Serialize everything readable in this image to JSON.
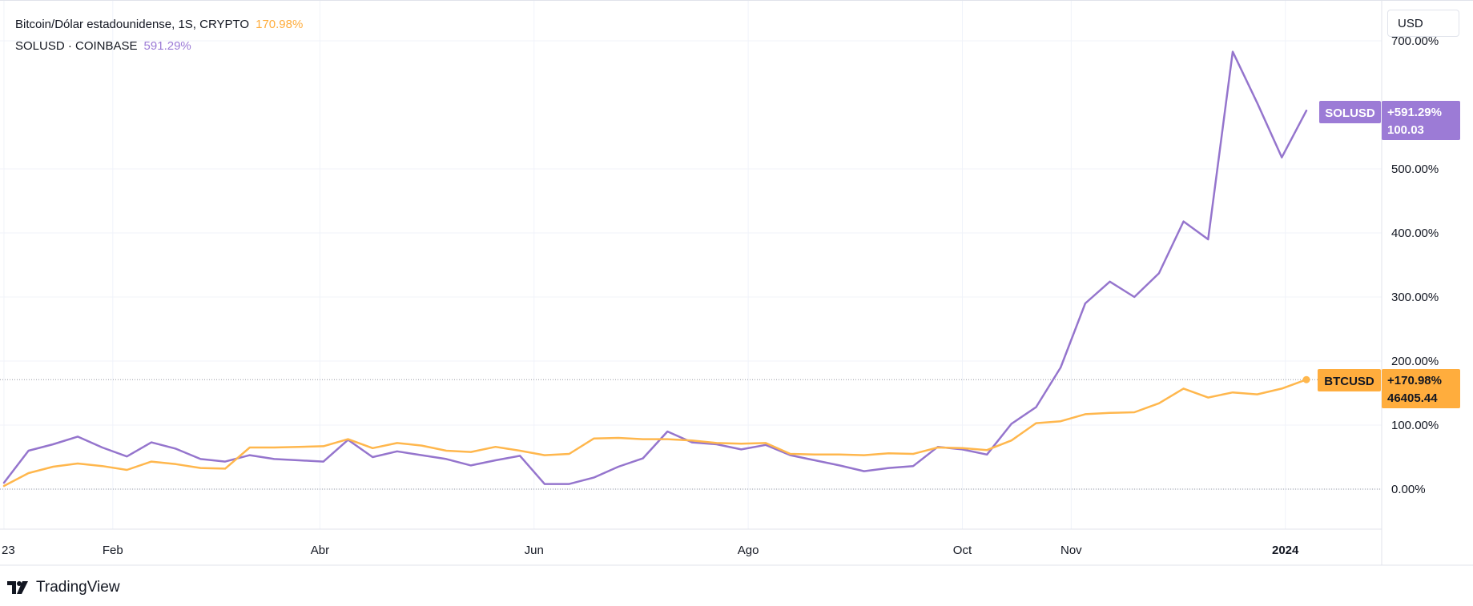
{
  "legend": {
    "series1_label": "Bitcoin/Dólar estadounidense, 1S, CRYPTO",
    "series1_change": "170.98%",
    "series2_label": "SOLUSD · COINBASE",
    "series2_change": "591.29%"
  },
  "currency_button": "USD",
  "logo_text": "TradingView",
  "colors": {
    "btc": "#ffb74d",
    "sol": "#9575cd",
    "btc_label": "#ffad3d",
    "sol_label": "#9c7bd6",
    "grid": "#f0f3fa",
    "axis_text": "#131722"
  },
  "badges": {
    "sol": {
      "name": "SOLUSD",
      "change": "+591.29%",
      "price": "100.03"
    },
    "btc": {
      "name": "BTCUSD",
      "change": "+170.98%",
      "price": "46405.44"
    }
  },
  "chart_data": {
    "type": "line",
    "y_unit": "%",
    "ylim": [
      -70,
      700
    ],
    "y_ticks": [
      0,
      100,
      200,
      300,
      400,
      500,
      700
    ],
    "y_tick_labels": [
      "0.00%",
      "100.00%",
      "200.00%",
      "300.00%",
      "400.00%",
      "500.00%",
      "700.00%"
    ],
    "x_ticks": [
      {
        "label": "23",
        "date": "2023-01-01"
      },
      {
        "label": "Feb",
        "date": "2023-02-01"
      },
      {
        "label": "Abr",
        "date": "2023-04-01"
      },
      {
        "label": "Jun",
        "date": "2023-06-01"
      },
      {
        "label": "Ago",
        "date": "2023-08-01"
      },
      {
        "label": "Oct",
        "date": "2023-10-01"
      },
      {
        "label": "Nov",
        "date": "2023-11-01"
      },
      {
        "label": "2024",
        "date": "2024-01-01"
      }
    ],
    "xlim": [
      "2023-01-01",
      "2024-01-24"
    ],
    "grid": true,
    "legend_position": "top-left",
    "series": [
      {
        "name": "Bitcoin/Dólar estadounidense, 1S, CRYPTO",
        "color": "#ffb74d",
        "x": [
          "2023-01-01",
          "2023-01-08",
          "2023-01-15",
          "2023-01-22",
          "2023-01-29",
          "2023-02-05",
          "2023-02-12",
          "2023-02-19",
          "2023-02-26",
          "2023-03-05",
          "2023-03-12",
          "2023-03-19",
          "2023-03-26",
          "2023-04-02",
          "2023-04-09",
          "2023-04-16",
          "2023-04-23",
          "2023-04-30",
          "2023-05-07",
          "2023-05-14",
          "2023-05-21",
          "2023-05-28",
          "2023-06-04",
          "2023-06-11",
          "2023-06-18",
          "2023-06-25",
          "2023-07-02",
          "2023-07-09",
          "2023-07-16",
          "2023-07-23",
          "2023-07-30",
          "2023-08-06",
          "2023-08-13",
          "2023-08-20",
          "2023-08-27",
          "2023-09-03",
          "2023-09-10",
          "2023-09-17",
          "2023-09-24",
          "2023-10-01",
          "2023-10-08",
          "2023-10-15",
          "2023-10-22",
          "2023-10-29",
          "2023-11-05",
          "2023-11-12",
          "2023-11-19",
          "2023-11-26",
          "2023-12-03",
          "2023-12-10",
          "2023-12-17",
          "2023-12-24",
          "2023-12-31",
          "2024-01-07"
        ],
        "values": [
          5,
          25,
          35,
          40,
          36,
          30,
          43,
          39,
          33,
          32,
          65,
          65,
          66,
          67,
          78,
          64,
          72,
          68,
          60,
          58,
          66,
          60,
          53,
          55,
          79,
          80,
          78,
          78,
          76,
          72,
          71,
          72,
          55,
          54,
          54,
          53,
          56,
          55,
          65,
          64,
          61,
          76,
          103,
          106,
          117,
          119,
          120,
          134,
          157,
          143,
          151,
          148,
          157,
          171
        ]
      },
      {
        "name": "SOLUSD · COINBASE",
        "color": "#9575cd",
        "x": [
          "2023-01-01",
          "2023-01-08",
          "2023-01-15",
          "2023-01-22",
          "2023-01-29",
          "2023-02-05",
          "2023-02-12",
          "2023-02-19",
          "2023-02-26",
          "2023-03-05",
          "2023-03-12",
          "2023-03-19",
          "2023-03-26",
          "2023-04-02",
          "2023-04-09",
          "2023-04-16",
          "2023-04-23",
          "2023-04-30",
          "2023-05-07",
          "2023-05-14",
          "2023-05-21",
          "2023-05-28",
          "2023-06-04",
          "2023-06-11",
          "2023-06-18",
          "2023-06-25",
          "2023-07-02",
          "2023-07-09",
          "2023-07-16",
          "2023-07-23",
          "2023-07-30",
          "2023-08-06",
          "2023-08-13",
          "2023-08-20",
          "2023-08-27",
          "2023-09-03",
          "2023-09-10",
          "2023-09-17",
          "2023-09-24",
          "2023-10-01",
          "2023-10-08",
          "2023-10-15",
          "2023-10-22",
          "2023-10-29",
          "2023-11-05",
          "2023-11-12",
          "2023-11-19",
          "2023-11-26",
          "2023-12-03",
          "2023-12-10",
          "2023-12-17",
          "2023-12-24",
          "2023-12-31",
          "2024-01-07"
        ],
        "values": [
          10,
          60,
          70,
          82,
          65,
          51,
          73,
          63,
          47,
          43,
          53,
          47,
          45,
          43,
          77,
          50,
          59,
          53,
          47,
          37,
          45,
          52,
          8,
          8,
          18,
          35,
          48,
          90,
          73,
          70,
          62,
          69,
          53,
          45,
          37,
          28,
          33,
          36,
          66,
          62,
          54,
          102,
          128,
          190,
          290,
          324,
          300,
          337,
          418,
          390,
          683,
          603,
          518,
          591
        ]
      }
    ]
  }
}
